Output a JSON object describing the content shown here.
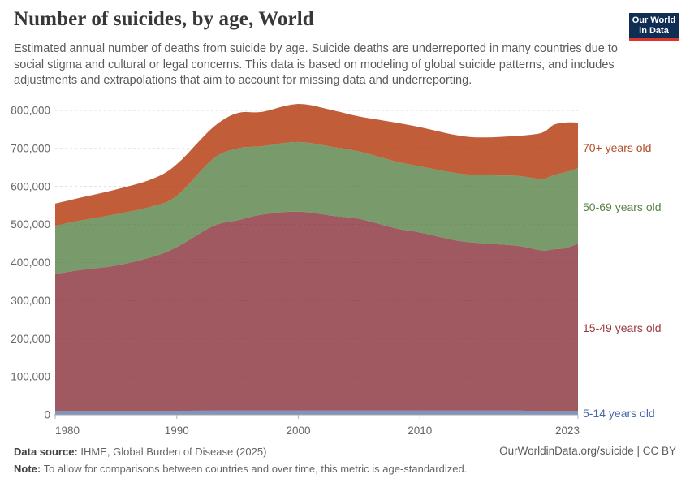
{
  "header": {
    "title": "Number of suicides, by age, World",
    "subtitle": "Estimated annual number of deaths from suicide by age. Suicide deaths are underreported in many countries due to social stigma and cultural or legal concerns. This data is based on modeling of global suicide patterns, and includes adjustments and extrapolations that aim to account for missing data and underreporting.",
    "logo": {
      "line1": "Our World",
      "line2": "in Data",
      "bg": "#102d54",
      "stripe": "#d8352e"
    }
  },
  "chart_data": {
    "type": "area",
    "stacked": true,
    "title": "Number of suicides, by age, World",
    "xlabel": "",
    "ylabel": "",
    "grid": "dashed",
    "legend_position": "right-edge-labels",
    "fill_opacity": 0.8,
    "xlim": [
      1980,
      2023
    ],
    "ylim": [
      0,
      800000
    ],
    "xticks": [
      1980,
      1990,
      2000,
      2010,
      2023
    ],
    "ytick_step": 100000,
    "ytick_labels": [
      "0",
      "100,000",
      "200,000",
      "300,000",
      "400,000",
      "500,000",
      "600,000",
      "700,000",
      "800,000"
    ],
    "x": [
      1980,
      1982,
      1985,
      1988,
      1990,
      1993,
      1995,
      1997,
      2000,
      2003,
      2005,
      2008,
      2010,
      2013,
      2015,
      2018,
      2020,
      2021,
      2022,
      2023
    ],
    "series": [
      {
        "name": "5-14 years old",
        "color": "#5c7ab1",
        "label_color": "#4466ab",
        "values": [
          10000,
          10000,
          10000,
          10000,
          10500,
          11000,
          11000,
          11000,
          11000,
          11000,
          11000,
          11000,
          11000,
          11000,
          11000,
          11000,
          10000,
          10000,
          10000,
          10000
        ]
      },
      {
        "name": "15-49 years old",
        "color": "#883039",
        "label_color": "#9c3a43",
        "values": [
          360000,
          370000,
          382000,
          405000,
          430000,
          485000,
          500000,
          515000,
          523000,
          511000,
          504000,
          479000,
          468000,
          447000,
          440000,
          433000,
          422000,
          425000,
          428000,
          440000
        ]
      },
      {
        "name": "50-69 years old",
        "color": "#578145",
        "label_color": "#5b8345",
        "values": [
          127000,
          130000,
          135000,
          133000,
          135000,
          177000,
          189000,
          180000,
          183000,
          181000,
          177000,
          176000,
          174000,
          177000,
          179000,
          184000,
          188000,
          195000,
          200000,
          198000
        ]
      },
      {
        "name": "70+ years old",
        "color": "#b13507",
        "label_color": "#b44e28",
        "values": [
          58000,
          60000,
          65000,
          72000,
          83000,
          83000,
          93000,
          90000,
          100000,
          96000,
          92000,
          102000,
          103000,
          100000,
          99000,
          105000,
          121000,
          132000,
          130000,
          120000
        ]
      }
    ]
  },
  "footer": {
    "source_label": "Data source:",
    "source_text": "IHME, Global Burden of Disease (2025)",
    "note_label": "Note:",
    "note_text": "To allow for comparisons between countries and over time, this metric is age-standardized.",
    "link": "OurWorldinData.org/suicide | CC BY"
  }
}
